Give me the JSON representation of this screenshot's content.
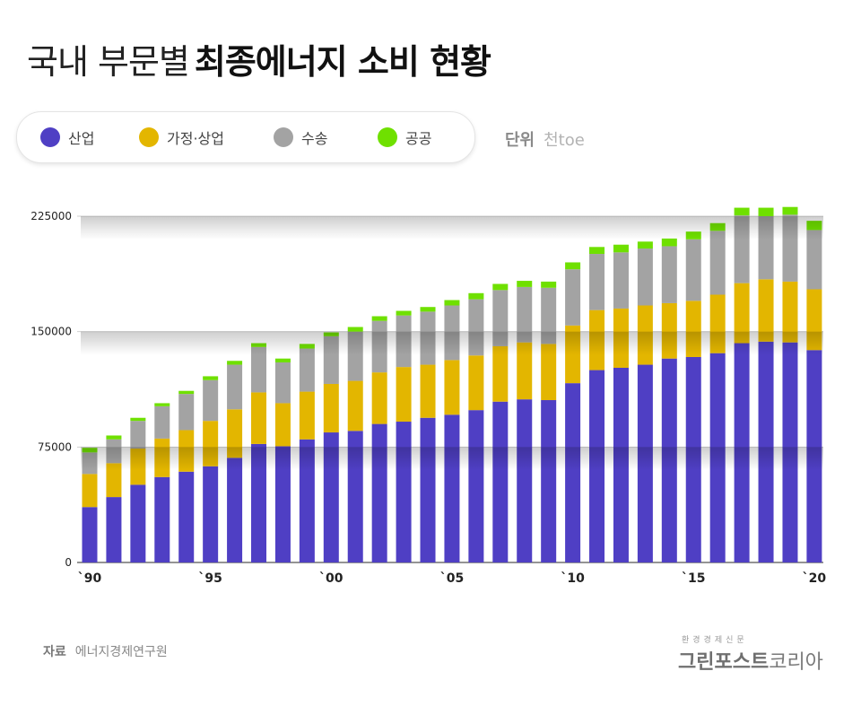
{
  "title": {
    "light": "국내 부문별",
    "bold": "최종에너지 소비 현황"
  },
  "legend": [
    {
      "label": "산업",
      "color": "#4f3fc4"
    },
    {
      "label": "가정·상업",
      "color": "#e3b600"
    },
    {
      "label": "수송",
      "color": "#a3a3a3"
    },
    {
      "label": "공공",
      "color": "#6fe000"
    }
  ],
  "unit": {
    "label": "단위",
    "value": "천toe"
  },
  "source": {
    "label": "자료",
    "value": "에너지경제연구원"
  },
  "logo": {
    "top": "환경경제신문",
    "bold": "그린포스트",
    "rest": "코리아"
  },
  "chart_data": {
    "type": "bar",
    "stacked": true,
    "x": [
      "1990",
      "1991",
      "1992",
      "1993",
      "1994",
      "1995",
      "1996",
      "1997",
      "1998",
      "1999",
      "2000",
      "2001",
      "2002",
      "2003",
      "2004",
      "2005",
      "2006",
      "2007",
      "2008",
      "2009",
      "2010",
      "2011",
      "2012",
      "2013",
      "2014",
      "2015",
      "2016",
      "2017",
      "2018",
      "2019",
      "2020"
    ],
    "x_tick_labels": [
      "`90",
      "`95",
      "`00",
      "`05",
      "`10",
      "`15",
      "`20"
    ],
    "y_ticks": [
      "0",
      "75000",
      "150000",
      "225000"
    ],
    "ylim": [
      0,
      225000
    ],
    "grid": true,
    "series": [
      {
        "name": "산업",
        "color": "#4f3fc4",
        "values": [
          36000,
          42500,
          50500,
          55500,
          59000,
          62500,
          68000,
          77000,
          75500,
          80000,
          84500,
          85500,
          90000,
          91500,
          94000,
          96000,
          99000,
          104500,
          106000,
          105500,
          116500,
          125000,
          126500,
          128500,
          132500,
          133500,
          136000,
          142500,
          143500,
          143000,
          138000
        ]
      },
      {
        "name": "가정·상업",
        "color": "#e3b600",
        "values": [
          21500,
          22000,
          23500,
          25000,
          27000,
          29500,
          31500,
          33500,
          28000,
          31000,
          31500,
          32500,
          33500,
          35500,
          34500,
          35500,
          35500,
          36000,
          37000,
          36500,
          37500,
          39000,
          38500,
          38500,
          36000,
          36500,
          38000,
          39000,
          40500,
          39500,
          39500
        ]
      },
      {
        "name": "수송",
        "color": "#a3a3a3",
        "values": [
          14000,
          15500,
          18000,
          21000,
          23500,
          26500,
          29000,
          29500,
          26500,
          28000,
          31000,
          32000,
          33500,
          33500,
          34500,
          35500,
          36500,
          36500,
          36000,
          36500,
          36500,
          36500,
          36500,
          37000,
          37000,
          40000,
          41500,
          44000,
          41000,
          43500,
          38500
        ]
      },
      {
        "name": "공공",
        "color": "#6fe000",
        "values": [
          3000,
          2500,
          2000,
          2000,
          2000,
          2500,
          2500,
          2500,
          2500,
          3000,
          2500,
          3000,
          3000,
          3000,
          3000,
          3500,
          4000,
          4000,
          4000,
          4000,
          4500,
          4500,
          5000,
          4500,
          5000,
          5000,
          5000,
          5000,
          5500,
          5000,
          6000
        ]
      }
    ]
  }
}
